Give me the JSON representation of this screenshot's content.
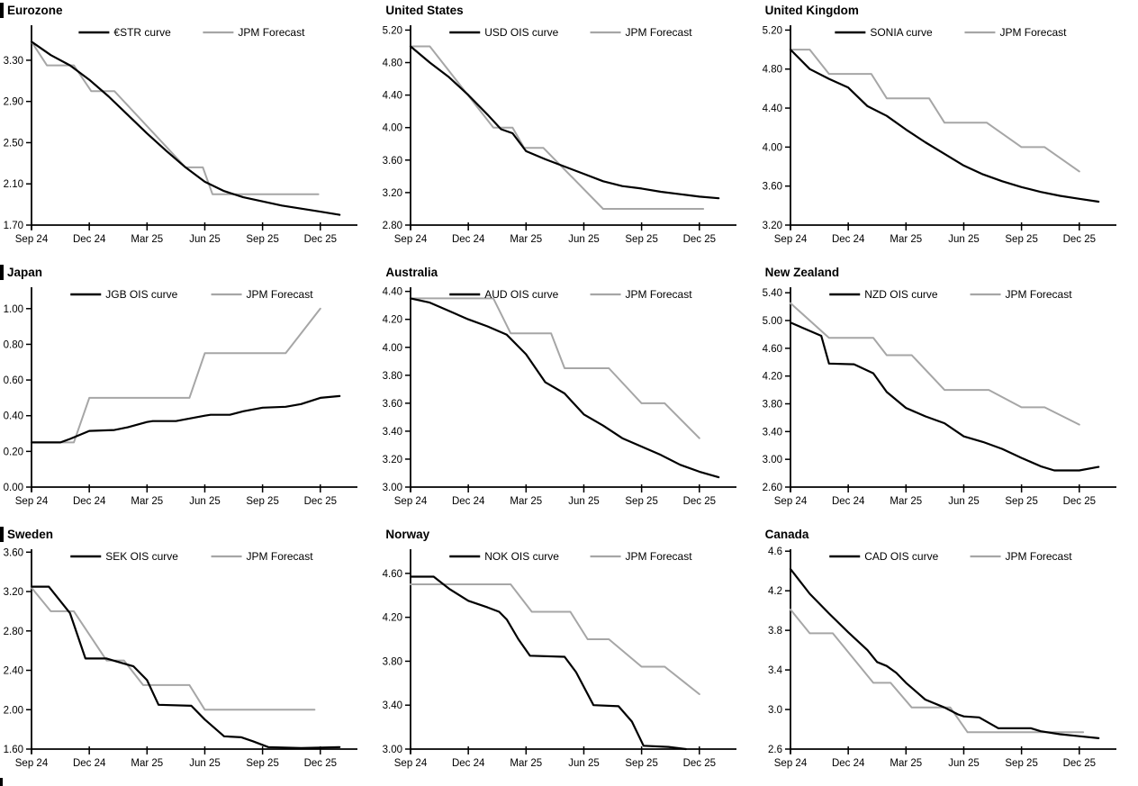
{
  "page": {
    "background": "#ffffff",
    "heading_bar_color": "#000000",
    "axis_color": "#000000",
    "forecast_color": "#a6a6a6",
    "has_bottom_left_crop_mark": true
  },
  "chart_data": [
    {
      "type": "line",
      "title": "Eurozone",
      "left_bar": true,
      "legend": [
        "€STR curve",
        "JPM Forecast"
      ],
      "legend_position": "top-center",
      "grid": false,
      "x_tick_labels": [
        "Sep 24",
        "Dec 24",
        "Mar 25",
        "Jun 25",
        "Sep 25",
        "Dec 25"
      ],
      "x_tick_pos": [
        0,
        3,
        6,
        9,
        12,
        15
      ],
      "xlim": [
        0,
        16.6
      ],
      "y_tick_labels": [
        "1.70",
        "2.10",
        "2.50",
        "2.90",
        "3.30"
      ],
      "y_tick_values": [
        1.7,
        2.1,
        2.5,
        2.9,
        3.3
      ],
      "ylim": [
        1.7,
        3.64
      ],
      "series": [
        {
          "name": "€STR curve",
          "color": "#000000",
          "stroke_width": 2.2,
          "x": [
            0,
            1,
            2,
            3,
            4,
            5,
            6,
            7,
            8,
            9,
            10,
            11,
            12,
            13,
            14,
            15,
            16
          ],
          "y": [
            3.48,
            3.35,
            3.25,
            3.11,
            2.95,
            2.77,
            2.59,
            2.42,
            2.26,
            2.12,
            2.03,
            1.97,
            1.93,
            1.89,
            1.86,
            1.83,
            1.8
          ]
        },
        {
          "name": "JPM Forecast",
          "color": "#a6a6a6",
          "stroke_width": 2,
          "x": [
            0,
            0.8,
            2.2,
            3.1,
            4.3,
            8.0,
            8.9,
            9.4,
            14.9
          ],
          "y": [
            3.48,
            3.25,
            3.25,
            3.0,
            3.0,
            2.26,
            2.26,
            2.0,
            2.0
          ]
        }
      ]
    },
    {
      "type": "line",
      "title": "United States",
      "left_bar": false,
      "legend": [
        "USD OIS curve",
        "JPM Forecast"
      ],
      "legend_position": "top-center",
      "grid": false,
      "x_tick_labels": [
        "Sep 24",
        "Dec 24",
        "Mar 25",
        "Jun 25",
        "Sep 25",
        "Dec 25"
      ],
      "x_tick_pos": [
        0,
        3,
        6,
        9,
        12,
        15
      ],
      "xlim": [
        0,
        16.6
      ],
      "y_tick_labels": [
        "2.80",
        "3.20",
        "3.60",
        "4.00",
        "4.40",
        "4.80",
        "5.20"
      ],
      "y_tick_values": [
        2.8,
        3.2,
        3.6,
        4.0,
        4.4,
        4.8,
        5.2
      ],
      "ylim": [
        2.8,
        5.26
      ],
      "series": [
        {
          "name": "USD OIS curve",
          "color": "#000000",
          "stroke_width": 2.2,
          "x": [
            0,
            1,
            2,
            3,
            4,
            4.7,
            5.3,
            6,
            7,
            8,
            9,
            10,
            11,
            12,
            13,
            14,
            15,
            16
          ],
          "y": [
            5.0,
            4.8,
            4.62,
            4.4,
            4.16,
            3.98,
            3.93,
            3.71,
            3.61,
            3.52,
            3.43,
            3.34,
            3.28,
            3.25,
            3.21,
            3.18,
            3.15,
            3.13
          ]
        },
        {
          "name": "JPM Forecast",
          "color": "#a6a6a6",
          "stroke_width": 2,
          "x": [
            0,
            1,
            4.3,
            5.3,
            5.9,
            6.9,
            10,
            15.2
          ],
          "y": [
            5.0,
            5.0,
            4.0,
            4.0,
            3.75,
            3.75,
            3.0,
            3.0
          ]
        }
      ]
    },
    {
      "type": "line",
      "title": "United Kingdom",
      "left_bar": false,
      "legend": [
        "SONIA curve",
        "JPM Forecast"
      ],
      "legend_position": "top-center",
      "grid": false,
      "x_tick_labels": [
        "Sep 24",
        "Dec 24",
        "Mar 25",
        "Jun 25",
        "Sep 25",
        "Dec 25"
      ],
      "x_tick_pos": [
        0,
        3,
        6,
        9,
        12,
        15
      ],
      "xlim": [
        0,
        16.6
      ],
      "y_tick_labels": [
        "3.20",
        "3.60",
        "4.00",
        "4.40",
        "4.80",
        "5.20"
      ],
      "y_tick_values": [
        3.2,
        3.6,
        4.0,
        4.4,
        4.8,
        5.2
      ],
      "ylim": [
        3.2,
        5.25
      ],
      "series": [
        {
          "name": "SONIA curve",
          "color": "#000000",
          "stroke_width": 2.2,
          "x": [
            0,
            1,
            2,
            3,
            4,
            5,
            6,
            7,
            8,
            9,
            10,
            11,
            12,
            13,
            14,
            15,
            16
          ],
          "y": [
            5.0,
            4.8,
            4.7,
            4.61,
            4.42,
            4.32,
            4.18,
            4.05,
            3.93,
            3.81,
            3.72,
            3.65,
            3.59,
            3.54,
            3.5,
            3.47,
            3.44
          ]
        },
        {
          "name": "JPM Forecast",
          "color": "#a6a6a6",
          "stroke_width": 2,
          "x": [
            0,
            1,
            2,
            4.2,
            5,
            7.2,
            8,
            10.2,
            12,
            13.2,
            15
          ],
          "y": [
            5.0,
            5.0,
            4.75,
            4.75,
            4.5,
            4.5,
            4.25,
            4.25,
            4.0,
            4.0,
            3.75
          ]
        }
      ]
    },
    {
      "type": "line",
      "title": "Japan",
      "left_bar": true,
      "legend": [
        "JGB OIS curve",
        "JPM Forecast"
      ],
      "legend_position": "top-center",
      "grid": false,
      "x_tick_labels": [
        "Sep 24",
        "Dec 24",
        "Mar 25",
        "Jun 25",
        "Sep 25",
        "Dec 25"
      ],
      "x_tick_pos": [
        0,
        3,
        6,
        9,
        12,
        15
      ],
      "xlim": [
        0,
        16.6
      ],
      "y_tick_labels": [
        "0.00",
        "0.20",
        "0.40",
        "0.60",
        "0.80",
        "1.00"
      ],
      "y_tick_values": [
        0.0,
        0.2,
        0.4,
        0.6,
        0.8,
        1.0
      ],
      "ylim": [
        0.0,
        1.12
      ],
      "series": [
        {
          "name": "JGB OIS curve",
          "color": "#000000",
          "stroke_width": 2.2,
          "x": [
            0,
            1.5,
            2,
            3,
            4.3,
            5,
            6,
            6.3,
            7.5,
            8,
            9,
            9.3,
            10.3,
            11,
            12,
            13.2,
            14,
            15,
            16
          ],
          "y": [
            0.25,
            0.25,
            0.27,
            0.315,
            0.32,
            0.335,
            0.365,
            0.37,
            0.37,
            0.38,
            0.4,
            0.405,
            0.405,
            0.425,
            0.445,
            0.45,
            0.465,
            0.5,
            0.51
          ]
        },
        {
          "name": "JPM Forecast",
          "color": "#a6a6a6",
          "stroke_width": 2,
          "x": [
            0,
            2.2,
            3,
            8.2,
            9,
            13.2,
            15
          ],
          "y": [
            0.25,
            0.25,
            0.5,
            0.5,
            0.75,
            0.75,
            1.0
          ]
        }
      ]
    },
    {
      "type": "line",
      "title": "Australia",
      "left_bar": false,
      "legend": [
        "AUD OIS curve",
        "JPM Forecast"
      ],
      "legend_position": "top-center",
      "grid": false,
      "x_tick_labels": [
        "Sep 24",
        "Dec 24",
        "Mar 25",
        "Jun 25",
        "Sep 25",
        "Dec 25"
      ],
      "x_tick_pos": [
        0,
        3,
        6,
        9,
        12,
        15
      ],
      "xlim": [
        0,
        16.6
      ],
      "y_tick_labels": [
        "3.00",
        "3.20",
        "3.40",
        "3.60",
        "3.80",
        "4.00",
        "4.20",
        "4.40"
      ],
      "y_tick_values": [
        3.0,
        3.2,
        3.4,
        3.6,
        3.8,
        4.0,
        4.2,
        4.4
      ],
      "ylim": [
        3.0,
        4.43
      ],
      "series": [
        {
          "name": "AUD OIS curve",
          "color": "#000000",
          "stroke_width": 2.2,
          "x": [
            0,
            1,
            2,
            3,
            4,
            5,
            6,
            7,
            8,
            9,
            10,
            11,
            12,
            13,
            14,
            15,
            16
          ],
          "y": [
            4.35,
            4.32,
            4.26,
            4.2,
            4.15,
            4.09,
            3.95,
            3.75,
            3.67,
            3.52,
            3.44,
            3.35,
            3.29,
            3.23,
            3.16,
            3.11,
            3.07
          ]
        },
        {
          "name": "JPM Forecast",
          "color": "#a6a6a6",
          "stroke_width": 2,
          "x": [
            0,
            4.3,
            5.2,
            7.3,
            8,
            10.3,
            12,
            13.2,
            15
          ],
          "y": [
            4.35,
            4.35,
            4.1,
            4.1,
            3.85,
            3.85,
            3.6,
            3.6,
            3.35
          ]
        }
      ]
    },
    {
      "type": "line",
      "title": "New Zealand",
      "left_bar": false,
      "legend": [
        "NZD OIS curve",
        "JPM Forecast"
      ],
      "legend_position": "top-center",
      "grid": false,
      "x_tick_labels": [
        "Sep 24",
        "Dec 24",
        "Mar 25",
        "Jun 25",
        "Sep 25",
        "Dec 25"
      ],
      "x_tick_pos": [
        0,
        3,
        6,
        9,
        12,
        15
      ],
      "xlim": [
        0,
        16.6
      ],
      "y_tick_labels": [
        "2.60",
        "3.00",
        "3.40",
        "3.80",
        "4.20",
        "4.60",
        "5.00",
        "5.40"
      ],
      "y_tick_values": [
        2.6,
        3.0,
        3.4,
        3.8,
        4.2,
        4.6,
        5.0,
        5.4
      ],
      "ylim": [
        2.6,
        5.48
      ],
      "series": [
        {
          "name": "NZD OIS curve",
          "color": "#000000",
          "stroke_width": 2.2,
          "x": [
            0,
            1.6,
            2,
            3.3,
            4.3,
            5,
            6,
            7,
            8,
            9,
            10,
            11,
            12,
            13,
            13.7,
            15,
            16
          ],
          "y": [
            4.97,
            4.78,
            4.38,
            4.37,
            4.24,
            3.97,
            3.74,
            3.62,
            3.52,
            3.33,
            3.25,
            3.15,
            3.02,
            2.9,
            2.84,
            2.84,
            2.89
          ]
        },
        {
          "name": "JPM Forecast",
          "color": "#a6a6a6",
          "stroke_width": 2,
          "x": [
            0,
            2,
            4.3,
            5,
            6.3,
            8,
            10.3,
            12,
            13.2,
            15
          ],
          "y": [
            5.25,
            4.75,
            4.75,
            4.5,
            4.5,
            4.0,
            4.0,
            3.75,
            3.75,
            3.5
          ]
        }
      ]
    },
    {
      "type": "line",
      "title": "Sweden",
      "left_bar": true,
      "legend": [
        "SEK OIS curve",
        "JPM Forecast"
      ],
      "legend_position": "top-center",
      "grid": false,
      "x_tick_labels": [
        "Sep 24",
        "Dec 24",
        "Mar 25",
        "Jun 25",
        "Sep 25",
        "Dec 25"
      ],
      "x_tick_pos": [
        0,
        3,
        6,
        9,
        12,
        15
      ],
      "xlim": [
        0,
        16.6
      ],
      "y_tick_labels": [
        "1.60",
        "2.00",
        "2.40",
        "2.80",
        "3.20",
        "3.60"
      ],
      "y_tick_values": [
        1.6,
        2.0,
        2.4,
        2.8,
        3.2,
        3.6
      ],
      "ylim": [
        1.6,
        3.63
      ],
      "series": [
        {
          "name": "SEK OIS curve",
          "color": "#000000",
          "stroke_width": 2.2,
          "x": [
            0,
            0.9,
            2,
            2.8,
            3.9,
            4.6,
            5.3,
            6,
            6.6,
            8.3,
            9,
            10,
            10.9,
            11.5,
            12.3,
            14,
            16
          ],
          "y": [
            3.25,
            3.25,
            2.98,
            2.52,
            2.52,
            2.48,
            2.44,
            2.3,
            2.05,
            2.04,
            1.9,
            1.73,
            1.72,
            1.68,
            1.62,
            1.61,
            1.62
          ]
        },
        {
          "name": "JPM Forecast",
          "color": "#a6a6a6",
          "stroke_width": 2,
          "x": [
            0,
            1,
            2.2,
            3.9,
            4.8,
            5.8,
            8.2,
            9,
            14.7
          ],
          "y": [
            3.24,
            3.0,
            3.0,
            2.5,
            2.5,
            2.25,
            2.25,
            2.0,
            2.0
          ]
        }
      ]
    },
    {
      "type": "line",
      "title": "Norway",
      "left_bar": false,
      "legend": [
        "NOK OIS curve",
        "JPM Forecast"
      ],
      "legend_position": "top-center",
      "grid": false,
      "x_tick_labels": [
        "Sep 24",
        "Dec 24",
        "Mar 25",
        "Jun 25",
        "Sep 25",
        "Dec 25"
      ],
      "x_tick_pos": [
        0,
        3,
        6,
        9,
        12,
        15
      ],
      "xlim": [
        0,
        16.6
      ],
      "y_tick_labels": [
        "3.00",
        "3.40",
        "3.80",
        "4.20",
        "4.60"
      ],
      "y_tick_values": [
        3.0,
        3.4,
        3.8,
        4.2,
        4.6
      ],
      "ylim": [
        3.0,
        4.82
      ],
      "series": [
        {
          "name": "NOK OIS curve",
          "color": "#000000",
          "stroke_width": 2.2,
          "x": [
            0,
            1.2,
            2,
            3,
            4,
            4.6,
            5,
            5.6,
            6.2,
            8,
            8.6,
            9.5,
            10.8,
            11.5,
            12.1,
            13.4,
            14.3
          ],
          "y": [
            4.57,
            4.57,
            4.46,
            4.35,
            4.29,
            4.25,
            4.18,
            4.0,
            3.85,
            3.84,
            3.7,
            3.4,
            3.39,
            3.25,
            3.03,
            3.02,
            3.0
          ]
        },
        {
          "name": "JPM Forecast",
          "color": "#a6a6a6",
          "stroke_width": 2,
          "x": [
            0,
            5.2,
            6.3,
            8.3,
            9.2,
            10.3,
            12,
            13.2,
            15
          ],
          "y": [
            4.5,
            4.5,
            4.25,
            4.25,
            4.0,
            4.0,
            3.75,
            3.75,
            3.5
          ]
        }
      ]
    },
    {
      "type": "line",
      "title": "Canada",
      "left_bar": false,
      "legend": [
        "CAD OIS curve",
        "JPM Forecast"
      ],
      "legend_position": "top-center",
      "grid": false,
      "x_tick_labels": [
        "Sep 24",
        "Dec 24",
        "Mar 25",
        "Jun 25",
        "Sep 25",
        "Dec 25"
      ],
      "x_tick_pos": [
        0,
        3,
        6,
        9,
        12,
        15
      ],
      "xlim": [
        0,
        16.6
      ],
      "y_tick_labels": [
        "2.6",
        "3.0",
        "3.4",
        "3.8",
        "4.2",
        "4.6"
      ],
      "y_tick_values": [
        2.6,
        3.0,
        3.4,
        3.8,
        4.2,
        4.6
      ],
      "ylim": [
        2.6,
        4.62
      ],
      "series": [
        {
          "name": "CAD OIS curve",
          "color": "#000000",
          "stroke_width": 2.2,
          "x": [
            0,
            1,
            2,
            3,
            4,
            4.5,
            5,
            5.5,
            6,
            7,
            8,
            8.7,
            9,
            9.8,
            10.8,
            12.5,
            13,
            14,
            15,
            16
          ],
          "y": [
            4.42,
            4.17,
            3.97,
            3.78,
            3.6,
            3.48,
            3.44,
            3.37,
            3.27,
            3.1,
            3.02,
            2.95,
            2.93,
            2.92,
            2.81,
            2.81,
            2.78,
            2.75,
            2.73,
            2.71
          ]
        },
        {
          "name": "JPM Forecast",
          "color": "#a6a6a6",
          "stroke_width": 2,
          "x": [
            0,
            1,
            2.2,
            4.3,
            5.2,
            6.3,
            8.3,
            9.2,
            15.2
          ],
          "y": [
            4.01,
            3.77,
            3.77,
            3.27,
            3.27,
            3.02,
            3.02,
            2.77,
            2.77
          ]
        }
      ]
    }
  ]
}
